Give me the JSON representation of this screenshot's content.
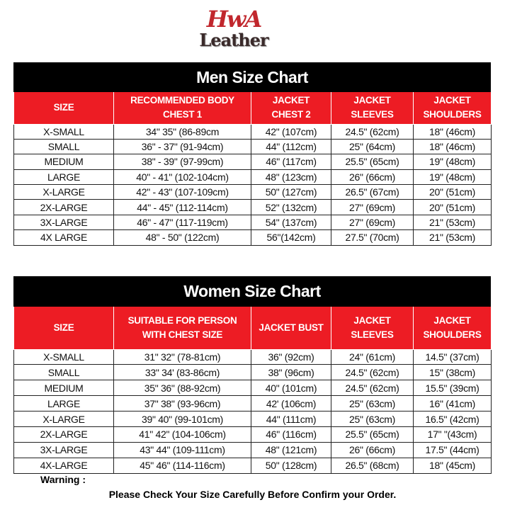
{
  "logo": {
    "line1": "HwA",
    "line2": "Leather",
    "colors": {
      "primary": "#c1272d",
      "secondary": "#3a2a2a"
    }
  },
  "colors": {
    "title_bg": "#000000",
    "header_bg": "#ed1c24"
  },
  "men": {
    "title": "Men Size Chart",
    "headers": [
      "SIZE",
      "RECOMMENDED BODY CHEST 1",
      "JACKET CHEST 2",
      "JACKET SLEEVES",
      "JACKET SHOULDERS"
    ],
    "rows": [
      [
        "X-SMALL",
        "34\" 35\" (86-89cm",
        "42\" (107cm)",
        "24.5\" (62cm)",
        "18\" (46cm)"
      ],
      [
        "SMALL",
        "36\" - 37\" (91-94cm)",
        "44\" (112cm)",
        "25\" (64cm)",
        "18\" (46cm)"
      ],
      [
        "MEDIUM",
        "38\" - 39\" (97-99cm)",
        "46\" (117cm)",
        "25.5\" (65cm)",
        "19\" (48cm)"
      ],
      [
        "LARGE",
        "40\" - 41\" (102-104cm)",
        "48\" (123cm)",
        "26\" (66cm)",
        "19\" (48cm)"
      ],
      [
        "X-LARGE",
        "42\" - 43\" (107-109cm)",
        "50\" (127cm)",
        "26.5\" (67cm)",
        "20\" (51cm)"
      ],
      [
        "2X-LARGE",
        "44\" - 45\" (112-114cm)",
        "52\" (132cm)",
        "27\" (69cm)",
        "20\" (51cm)"
      ],
      [
        "3X-LARGE",
        "46\" - 47\" (117-119cm)",
        "54\" (137cm)",
        "27\" (69cm)",
        "21\" (53cm)"
      ],
      [
        "4X LARGE",
        "48\" - 50\" (122cm)",
        "56\"(142cm)",
        "27.5\" (70cm)",
        "21\" (53cm)"
      ]
    ]
  },
  "women": {
    "title": "Women Size Chart",
    "headers": [
      "SIZE",
      "SUITABLE FOR PERSON WITH CHEST SIZE",
      "JACKET BUST",
      "JACKET SLEEVES",
      "JACKET SHOULDERS"
    ],
    "rows": [
      [
        "X-SMALL",
        "31\" 32\" (78-81cm)",
        "36\" (92cm)",
        "24\" (61cm)",
        "14.5\" (37cm)"
      ],
      [
        "SMALL",
        "33\" 34' (83-86cm)",
        "38\" (96cm)",
        "24.5\" (62cm)",
        "15\" (38cm)"
      ],
      [
        "MEDIUM",
        "35\" 36\" (88-92cm)",
        "40\" (101cm)",
        "24.5\" (62cm)",
        "15.5\" (39cm)"
      ],
      [
        "LARGE",
        "37\" 38\" (93-96cm)",
        "42' (106cm)",
        "25\" (63cm)",
        "16\" (41cm)"
      ],
      [
        "X-LARGE",
        "39\" 40\" (99-101cm)",
        "44\" (111cm)",
        "25\" (63cm)",
        "16.5\" (42cm)"
      ],
      [
        "2X-LARGE",
        "41\" 42\" (104-106cm)",
        "46\" (116cm)",
        "25.5\" (65cm)",
        "17\" \"(43cm)"
      ],
      [
        "3X-LARGE",
        "43\" 44\" (109-111cm)",
        "48\" (121cm)",
        "26\" (66cm)",
        "17.5\" (44cm)"
      ],
      [
        "4X-LARGE",
        "45\" 46\" (114-116cm)",
        "50\" (128cm)",
        "26.5\" (68cm)",
        "18\" (45cm)"
      ]
    ]
  },
  "warning": {
    "label": "Warning :",
    "message": "Please Check Your Size Carefully Before Confirm your Order."
  }
}
